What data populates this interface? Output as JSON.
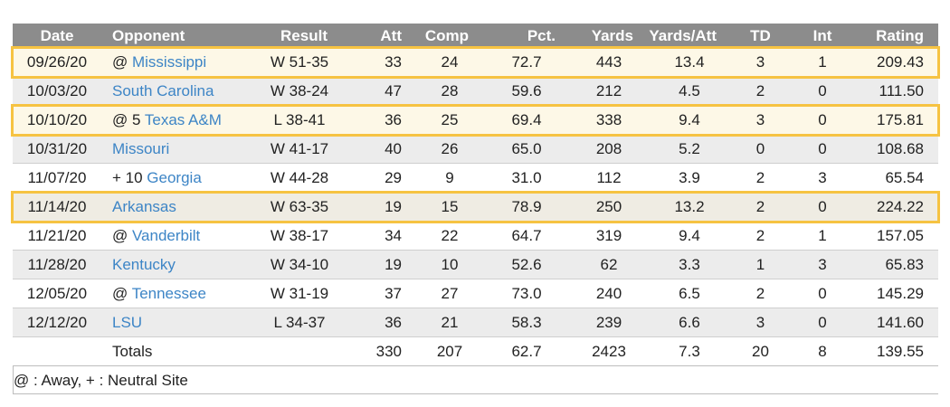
{
  "headers": [
    "Date",
    "Opponent",
    "Result",
    "Att",
    "Comp",
    "Pct.",
    "Yards",
    "Yards/Att",
    "TD",
    "Int",
    "Rating"
  ],
  "rows": [
    {
      "date": "09/26/20",
      "prefix": "@ ",
      "opponent": "Mississippi",
      "result": "W 51-35",
      "att": "33",
      "comp": "24",
      "pct": "72.7",
      "yards": "443",
      "ypa": "13.4",
      "td": "3",
      "int": "1",
      "rating": "209.43"
    },
    {
      "date": "10/03/20",
      "prefix": "",
      "opponent": "South Carolina",
      "result": "W 38-24",
      "att": "47",
      "comp": "28",
      "pct": "59.6",
      "yards": "212",
      "ypa": "4.5",
      "td": "2",
      "int": "0",
      "rating": "111.50"
    },
    {
      "date": "10/10/20",
      "prefix": "@ 5 ",
      "opponent": "Texas A&M",
      "result": "L 38-41",
      "att": "36",
      "comp": "25",
      "pct": "69.4",
      "yards": "338",
      "ypa": "9.4",
      "td": "3",
      "int": "0",
      "rating": "175.81"
    },
    {
      "date": "10/31/20",
      "prefix": "",
      "opponent": "Missouri",
      "result": "W 41-17",
      "att": "40",
      "comp": "26",
      "pct": "65.0",
      "yards": "208",
      "ypa": "5.2",
      "td": "0",
      "int": "0",
      "rating": "108.68"
    },
    {
      "date": "11/07/20",
      "prefix": "+ 10 ",
      "opponent": "Georgia",
      "result": "W 44-28",
      "att": "29",
      "comp": "9",
      "pct": "31.0",
      "yards": "112",
      "ypa": "3.9",
      "td": "2",
      "int": "3",
      "rating": "65.54"
    },
    {
      "date": "11/14/20",
      "prefix": "",
      "opponent": "Arkansas",
      "result": "W 63-35",
      "att": "19",
      "comp": "15",
      "pct": "78.9",
      "yards": "250",
      "ypa": "13.2",
      "td": "2",
      "int": "0",
      "rating": "224.22"
    },
    {
      "date": "11/21/20",
      "prefix": "@ ",
      "opponent": "Vanderbilt",
      "result": "W 38-17",
      "att": "34",
      "comp": "22",
      "pct": "64.7",
      "yards": "319",
      "ypa": "9.4",
      "td": "2",
      "int": "1",
      "rating": "157.05"
    },
    {
      "date": "11/28/20",
      "prefix": "",
      "opponent": "Kentucky",
      "result": "W 34-10",
      "att": "19",
      "comp": "10",
      "pct": "52.6",
      "yards": "62",
      "ypa": "3.3",
      "td": "1",
      "int": "3",
      "rating": "65.83"
    },
    {
      "date": "12/05/20",
      "prefix": "@ ",
      "opponent": "Tennessee",
      "result": "W 31-19",
      "att": "37",
      "comp": "27",
      "pct": "73.0",
      "yards": "240",
      "ypa": "6.5",
      "td": "2",
      "int": "0",
      "rating": "145.29"
    },
    {
      "date": "12/12/20",
      "prefix": "",
      "opponent": "LSU",
      "result": "L 34-37",
      "att": "36",
      "comp": "21",
      "pct": "58.3",
      "yards": "239",
      "ypa": "6.6",
      "td": "3",
      "int": "0",
      "rating": "141.60"
    }
  ],
  "totals": {
    "label": "Totals",
    "att": "330",
    "comp": "207",
    "pct": "62.7",
    "yards": "2423",
    "ypa": "7.3",
    "td": "20",
    "int": "8",
    "rating": "139.55"
  },
  "footnote": "@ : Away, + : Neutral Site",
  "highlighted_rows": [
    0,
    2,
    5
  ],
  "colors": {
    "header_bg": "#8c8c8c",
    "link": "#3d85c6",
    "highlight_border": "#f6c342",
    "alt_row": "#ececec"
  }
}
